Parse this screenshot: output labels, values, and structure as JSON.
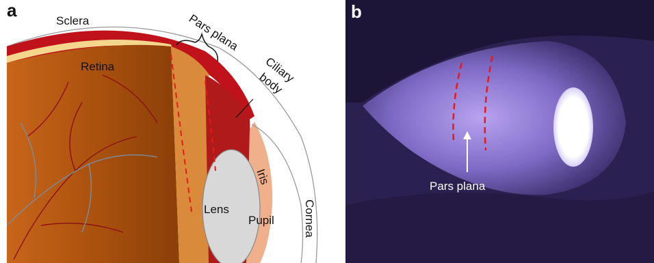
{
  "panels": [
    {
      "label": "a",
      "labels": {
        "sclera": "Sclera",
        "pars_plana": "Pars plana",
        "retina": "Retina",
        "ciliary": "Ciliary",
        "body": "body",
        "iris": "Iris",
        "lens": "Lens",
        "pupil": "Pupil",
        "cornea": "Cornea"
      }
    },
    {
      "label": "b",
      "labels": {
        "pars_plana": "Pars plana"
      }
    }
  ]
}
